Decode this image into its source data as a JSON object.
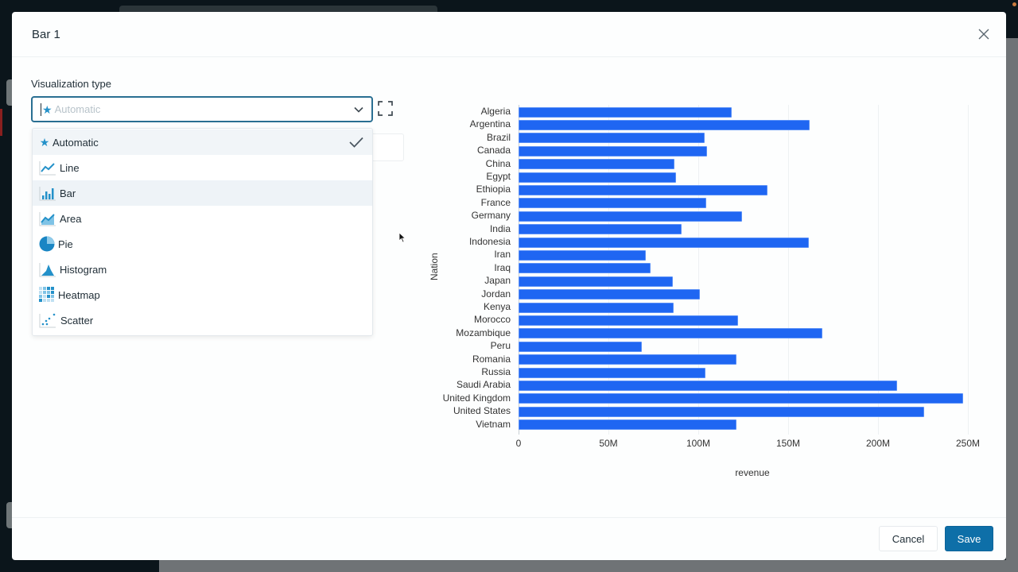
{
  "modal": {
    "title": "Bar 1",
    "close_icon": "close-icon"
  },
  "visualization": {
    "label": "Visualization type",
    "selected_value": "Automatic",
    "placeholder": "Automatic",
    "expand_icon": "expand-icon",
    "options": [
      {
        "label": "Automatic",
        "icon": "star-icon",
        "selected": true
      },
      {
        "label": "Line",
        "icon": "line-chart-icon",
        "selected": false
      },
      {
        "label": "Bar",
        "icon": "bar-chart-icon",
        "selected": false,
        "hovered": true
      },
      {
        "label": "Area",
        "icon": "area-chart-icon",
        "selected": false
      },
      {
        "label": "Pie",
        "icon": "pie-chart-icon",
        "selected": false
      },
      {
        "label": "Histogram",
        "icon": "histogram-icon",
        "selected": false
      },
      {
        "label": "Heatmap",
        "icon": "heatmap-icon",
        "selected": false
      },
      {
        "label": "Scatter",
        "icon": "scatter-icon",
        "selected": false
      }
    ]
  },
  "colors": {
    "accent": "#2491c9",
    "bar": "#1f66f2",
    "primary_button": "#0e6fa8",
    "select_border": "#2a6f92"
  },
  "chart_data": {
    "type": "bar",
    "orientation": "horizontal",
    "title": "",
    "xlabel": "revenue",
    "ylabel": "Nation",
    "xlim": [
      0,
      250000000
    ],
    "x_ticks": [
      "0",
      "50M",
      "100M",
      "150M",
      "200M",
      "250M"
    ],
    "grid": true,
    "legend": null,
    "categories": [
      "Algeria",
      "Argentina",
      "Brazil",
      "Canada",
      "China",
      "Egypt",
      "Ethiopia",
      "France",
      "Germany",
      "India",
      "Indonesia",
      "Iran",
      "Iraq",
      "Japan",
      "Jordan",
      "Kenya",
      "Morocco",
      "Mozambique",
      "Peru",
      "Romania",
      "Russia",
      "Saudi Arabia",
      "United Kingdom",
      "United States",
      "Vietnam"
    ],
    "values": [
      118600000,
      162000000,
      103700000,
      105000000,
      86800000,
      87800000,
      138600000,
      104500000,
      124400000,
      90900000,
      161700000,
      70800000,
      73300000,
      86000000,
      100900000,
      86200000,
      122300000,
      169200000,
      68700000,
      121200000,
      104200000,
      210400000,
      247500000,
      225800000,
      121200000
    ]
  },
  "footer": {
    "cancel_label": "Cancel",
    "save_label": "Save"
  }
}
